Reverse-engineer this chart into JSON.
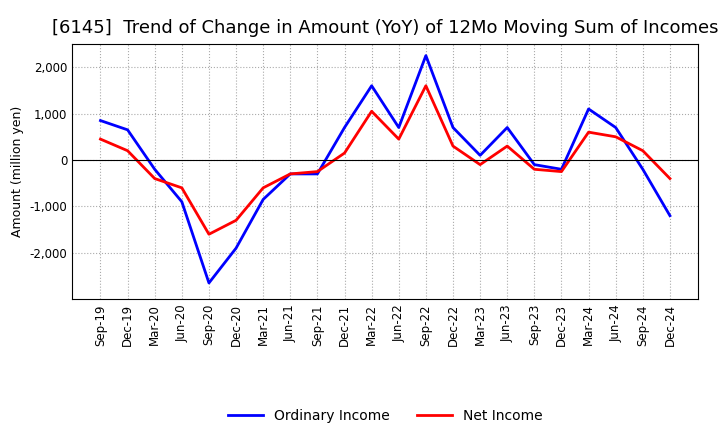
{
  "title": "[6145]  Trend of Change in Amount (YoY) of 12Mo Moving Sum of Incomes",
  "ylabel": "Amount (million yen)",
  "labels": [
    "Sep-19",
    "Dec-19",
    "Mar-20",
    "Jun-20",
    "Sep-20",
    "Dec-20",
    "Mar-21",
    "Jun-21",
    "Sep-21",
    "Dec-21",
    "Mar-22",
    "Jun-22",
    "Sep-22",
    "Dec-22",
    "Mar-23",
    "Jun-23",
    "Sep-23",
    "Dec-23",
    "Mar-24",
    "Jun-24",
    "Sep-24",
    "Dec-24"
  ],
  "ordinary_income": [
    850,
    650,
    -200,
    -900,
    -2650,
    -1900,
    -850,
    -300,
    -300,
    700,
    1600,
    700,
    2250,
    700,
    100,
    700,
    -100,
    -200,
    1100,
    700,
    -200,
    -1200
  ],
  "net_income": [
    450,
    200,
    -400,
    -600,
    -1600,
    -1300,
    -600,
    -300,
    -250,
    150,
    1050,
    450,
    1600,
    300,
    -100,
    300,
    -200,
    -250,
    600,
    500,
    200,
    -400
  ],
  "ordinary_color": "#0000FF",
  "net_color": "#FF0000",
  "background_color": "#FFFFFF",
  "grid_color": "#AAAAAA",
  "ylim": [
    -3000,
    2500
  ],
  "yticks": [
    -2000,
    -1000,
    0,
    1000,
    2000
  ],
  "title_fontsize": 13,
  "axis_fontsize": 9,
  "tick_fontsize": 8.5,
  "legend_fontsize": 10,
  "line_width": 2.0
}
